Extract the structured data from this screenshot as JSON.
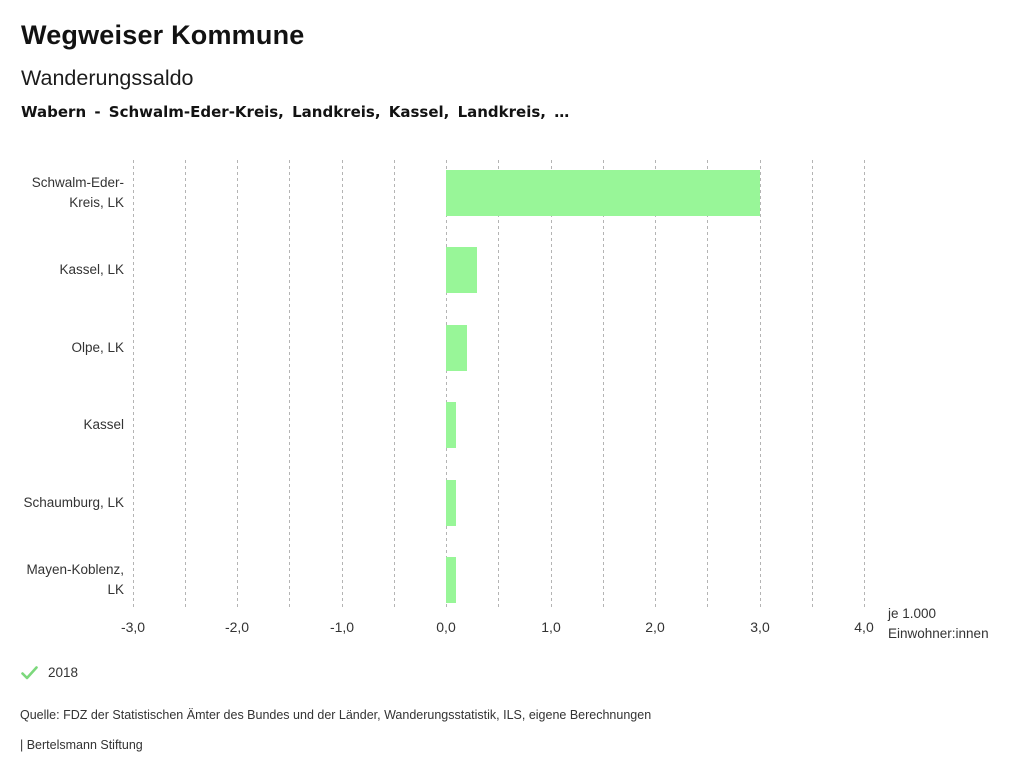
{
  "header": {
    "app_title": "Wegweiser Kommune",
    "chart_title": "Wanderungssaldo",
    "location_line": "Wabern - Schwalm-Eder-Kreis, Landkreis, Kassel, Landkreis, …"
  },
  "chart_data": {
    "type": "bar",
    "orientation": "horizontal",
    "title": "Wanderungssaldo",
    "categories": [
      "Schwalm-Eder-Kreis, LK",
      "Kassel, LK",
      "Olpe, LK",
      "Kassel",
      "Schaumburg, LK",
      "Mayen-Koblenz, LK"
    ],
    "series": [
      {
        "name": "2018",
        "values": [
          3.0,
          0.3,
          0.2,
          0.1,
          0.1,
          0.1
        ]
      }
    ],
    "xlim": [
      -3.0,
      4.0
    ],
    "gridline_step": 0.5,
    "grid": true,
    "tick_values": [
      -3,
      -2,
      -1,
      0,
      1,
      2,
      3,
      4
    ],
    "tick_labels": [
      "-3,0",
      "-2,0",
      "-1,0",
      "0,0",
      "1,0",
      "2,0",
      "3,0",
      "4,0"
    ],
    "unit_label_lines": [
      "je 1.000",
      "Einwohner:innen"
    ],
    "bar_color": "#98f698",
    "legend_position": "bottom-left"
  },
  "legend": {
    "items": [
      {
        "label": "2018",
        "icon": "check-icon",
        "color": "#7cd87c"
      }
    ]
  },
  "footer": {
    "source": "Quelle: FDZ der Statistischen Ämter des Bundes und der Länder, Wanderungsstatistik, ILS, eigene Berechnungen",
    "branding": "| Bertelsmann Stiftung"
  }
}
